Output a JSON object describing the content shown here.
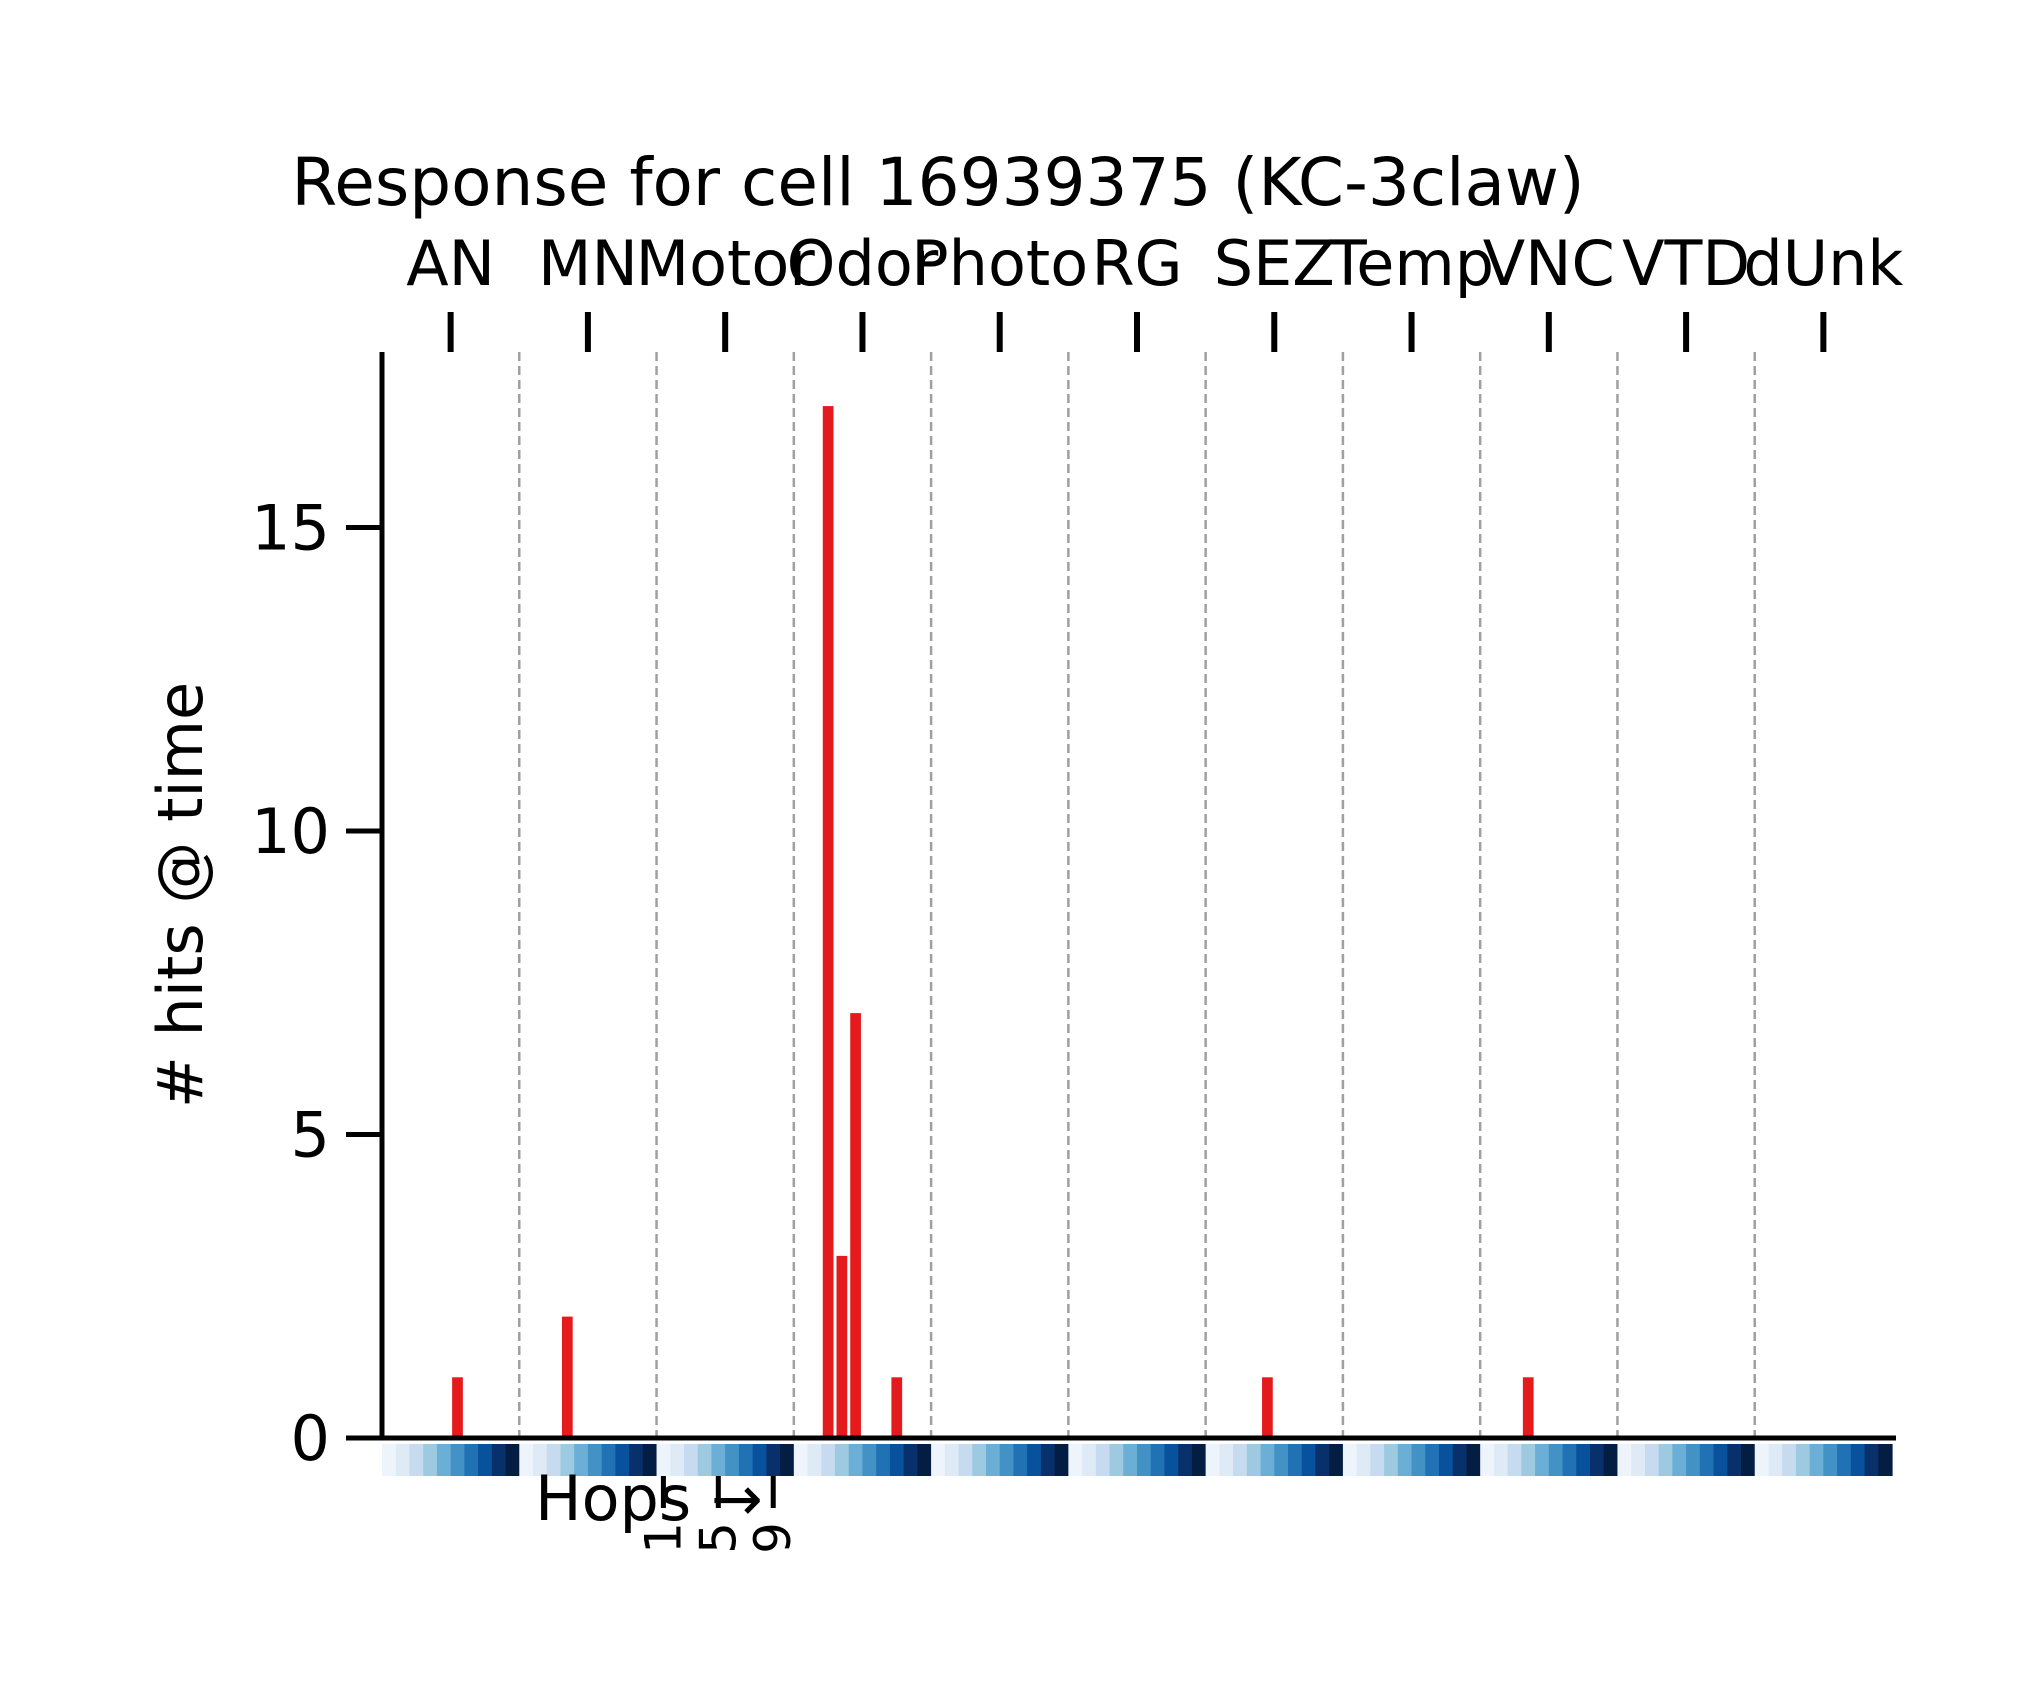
{
  "chart_data": {
    "type": "bar",
    "title": "Response for cell 16939375 (KC-3claw)",
    "xlabel": "Hops →",
    "ylabel": "# hits @ time",
    "ylim": [
      0,
      18
    ],
    "yticks": [
      0,
      5,
      10,
      15
    ],
    "categories": [
      "AN",
      "MN",
      "Motor",
      "Odor",
      "Photo",
      "RG",
      "SEZ",
      "Temp",
      "VNC",
      "VTD",
      "dUnk"
    ],
    "hops_per_category": 10,
    "hop_tick_labels": [
      "1",
      "5",
      "9"
    ],
    "grid": "dashed vertical separators between categories",
    "colors": {
      "bar": "#e41a1c",
      "separator": "#a0a0a0",
      "hop_colormap": [
        "#eef4fb",
        "#deebf7",
        "#c6dbef",
        "#9ecae1",
        "#6baed6",
        "#4292c6",
        "#2171b5",
        "#08519c",
        "#08306b",
        "#041d42"
      ]
    },
    "bars": [
      {
        "category": "AN",
        "hop": 6,
        "value": 1
      },
      {
        "category": "MN",
        "hop": 4,
        "value": 2
      },
      {
        "category": "Odor",
        "hop": 3,
        "value": 17
      },
      {
        "category": "Odor",
        "hop": 4,
        "value": 3
      },
      {
        "category": "Odor",
        "hop": 5,
        "value": 7
      },
      {
        "category": "Odor",
        "hop": 8,
        "value": 1
      },
      {
        "category": "SEZ",
        "hop": 5,
        "value": 1
      },
      {
        "category": "VNC",
        "hop": 4,
        "value": 1
      }
    ]
  }
}
